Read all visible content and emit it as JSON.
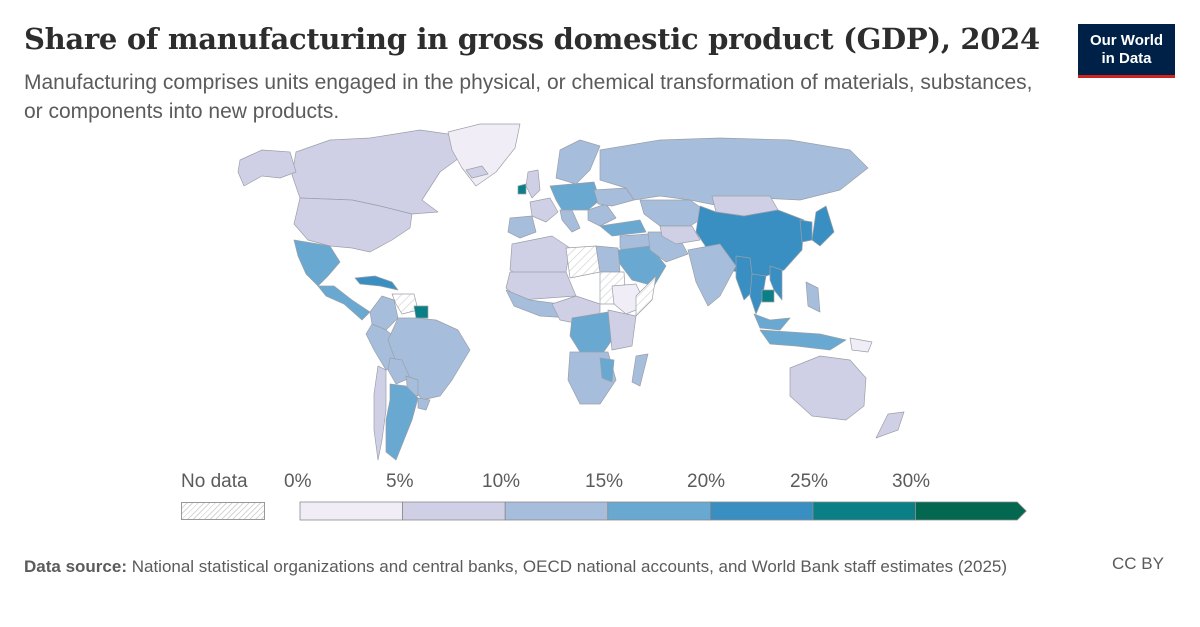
{
  "header": {
    "title": "Share of manufacturing in gross domestic product (GDP), 2024",
    "subtitle": "Manufacturing comprises units engaged in the physical, or chemical transformation of materials, substances, or components into new products."
  },
  "logo": {
    "line1": "Our World",
    "line2": "in Data",
    "bg_color": "#002147",
    "accent_color": "#ce261e"
  },
  "legend": {
    "no_data_label": "No data",
    "ticks": [
      "0%",
      "5%",
      "10%",
      "15%",
      "20%",
      "25%",
      "30%"
    ],
    "bins": [
      {
        "min": 0,
        "max": 5,
        "color": "#f1edf6"
      },
      {
        "min": 5,
        "max": 10,
        "color": "#cfd0e6"
      },
      {
        "min": 10,
        "max": 15,
        "color": "#a7bddc"
      },
      {
        "min": 15,
        "max": 20,
        "color": "#69a8d0"
      },
      {
        "min": 20,
        "max": 25,
        "color": "#3a8fc2"
      },
      {
        "min": 25,
        "max": 30,
        "color": "#0b7f86"
      },
      {
        "min": 30,
        "max": null,
        "color": "#03684f"
      }
    ]
  },
  "map_data": {
    "type": "choropleth",
    "unit": "% of GDP",
    "year": 2024,
    "regions": [
      {
        "name": "Canada",
        "bin": 1
      },
      {
        "name": "United States",
        "bin": 1
      },
      {
        "name": "Greenland",
        "bin": 0
      },
      {
        "name": "Alaska",
        "bin": 1
      },
      {
        "name": "Mexico",
        "bin": 3
      },
      {
        "name": "Central America",
        "bin": 3
      },
      {
        "name": "Caribbean",
        "bin": 4
      },
      {
        "name": "Venezuela",
        "bin": -1
      },
      {
        "name": "Guyana",
        "bin": 5
      },
      {
        "name": "Colombia",
        "bin": 2
      },
      {
        "name": "Peru",
        "bin": 2
      },
      {
        "name": "Brazil",
        "bin": 2
      },
      {
        "name": "Bolivia",
        "bin": 2
      },
      {
        "name": "Paraguay",
        "bin": 2
      },
      {
        "name": "Chile",
        "bin": 1
      },
      {
        "name": "Argentina",
        "bin": 3
      },
      {
        "name": "Uruguay",
        "bin": 2
      },
      {
        "name": "Iceland",
        "bin": 1
      },
      {
        "name": "Ireland",
        "bin": 5
      },
      {
        "name": "United Kingdom",
        "bin": 1
      },
      {
        "name": "France",
        "bin": 1
      },
      {
        "name": "Iberia",
        "bin": 2
      },
      {
        "name": "Central Europe",
        "bin": 3
      },
      {
        "name": "Italy",
        "bin": 2
      },
      {
        "name": "Scandinavia",
        "bin": 2
      },
      {
        "name": "Eastern Europe",
        "bin": 2
      },
      {
        "name": "Ukraine",
        "bin": 2
      },
      {
        "name": "Russia",
        "bin": 2
      },
      {
        "name": "Kazakhstan",
        "bin": 2
      },
      {
        "name": "Mongolia",
        "bin": 1
      },
      {
        "name": "China",
        "bin": 4
      },
      {
        "name": "Korea",
        "bin": 4
      },
      {
        "name": "Japan",
        "bin": 4
      },
      {
        "name": "Turkey",
        "bin": 3
      },
      {
        "name": "Middle East",
        "bin": 2
      },
      {
        "name": "Saudi Arabia",
        "bin": 3
      },
      {
        "name": "Iran",
        "bin": 2
      },
      {
        "name": "Central Asia",
        "bin": 1
      },
      {
        "name": "India",
        "bin": 2
      },
      {
        "name": "Myanmar",
        "bin": 4
      },
      {
        "name": "Thailand",
        "bin": 4
      },
      {
        "name": "Cambodia",
        "bin": 5
      },
      {
        "name": "Vietnam",
        "bin": 4
      },
      {
        "name": "Malaysia",
        "bin": 3
      },
      {
        "name": "Indonesia",
        "bin": 3
      },
      {
        "name": "Philippines",
        "bin": 2
      },
      {
        "name": "Papua New Guinea",
        "bin": 0
      },
      {
        "name": "Australia",
        "bin": 1
      },
      {
        "name": "New Zealand",
        "bin": 1
      },
      {
        "name": "North Africa",
        "bin": 1
      },
      {
        "name": "Libya",
        "bin": -1
      },
      {
        "name": "Egypt",
        "bin": 2
      },
      {
        "name": "Sudan",
        "bin": -1
      },
      {
        "name": "Sahel",
        "bin": 1
      },
      {
        "name": "West Africa",
        "bin": 2
      },
      {
        "name": "Ethiopia",
        "bin": 0
      },
      {
        "name": "Somalia",
        "bin": -1
      },
      {
        "name": "Central Africa",
        "bin": 1
      },
      {
        "name": "DR Congo",
        "bin": 3
      },
      {
        "name": "East Africa",
        "bin": 1
      },
      {
        "name": "Southern Africa",
        "bin": 2
      },
      {
        "name": "Zimbabwe",
        "bin": 3
      },
      {
        "name": "Madagascar",
        "bin": 2
      }
    ]
  },
  "footer": {
    "source_label": "Data source:",
    "source_text": " National statistical organizations and central banks, OECD national accounts, and World Bank staff estimates (2025)",
    "license": "CC BY"
  }
}
